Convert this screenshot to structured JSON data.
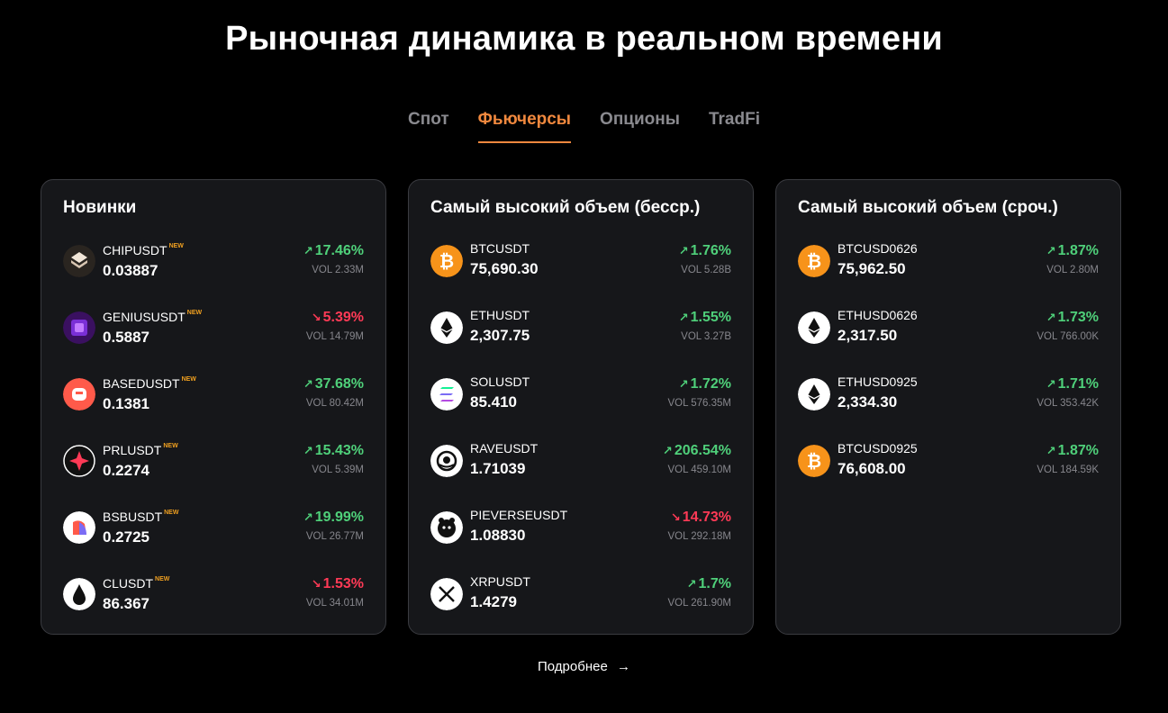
{
  "title": "Рыночная динамика в реальном времени",
  "tabs": [
    {
      "label": "Спот",
      "active": false
    },
    {
      "label": "Фьючерсы",
      "active": true
    },
    {
      "label": "Опционы",
      "active": false
    },
    {
      "label": "TradFi",
      "active": false
    }
  ],
  "colors": {
    "accent": "#f0883e",
    "up": "#4fd07a",
    "down": "#ff3a56",
    "new_badge": "#f0a020"
  },
  "cards": [
    {
      "title": "Новинки",
      "rows": [
        {
          "symbol": "CHIPUSDT",
          "badge": "NEW",
          "price": "0.03887",
          "change": "17.46%",
          "direction": "up",
          "vol": "VOL 2.33M",
          "icon": "chip-icon",
          "icon_bg": "#2a2520"
        },
        {
          "symbol": "GENIUSUSDT",
          "badge": "NEW",
          "price": "0.5887",
          "change": "5.39%",
          "direction": "down",
          "vol": "VOL 14.79M",
          "icon": "genius-icon",
          "icon_bg": "#3a1060"
        },
        {
          "symbol": "BASEDUSDT",
          "badge": "NEW",
          "price": "0.1381",
          "change": "37.68%",
          "direction": "up",
          "vol": "VOL 80.42M",
          "icon": "based-icon",
          "icon_bg": "#ff5a4a"
        },
        {
          "symbol": "PRLUSDT",
          "badge": "NEW",
          "price": "0.2274",
          "change": "15.43%",
          "direction": "up",
          "vol": "VOL 5.39M",
          "icon": "prl-icon",
          "icon_bg": "#111111"
        },
        {
          "symbol": "BSBUSDT",
          "badge": "NEW",
          "price": "0.2725",
          "change": "19.99%",
          "direction": "up",
          "vol": "VOL 26.77M",
          "icon": "bsb-icon",
          "icon_bg": "#ffffff"
        },
        {
          "symbol": "CLUSDT",
          "badge": "NEW",
          "price": "86.367",
          "change": "1.53%",
          "direction": "down",
          "vol": "VOL 34.01M",
          "icon": "oil-drop-icon",
          "icon_bg": "#ffffff"
        }
      ]
    },
    {
      "title": "Самый высокий объем (бесср.)",
      "rows": [
        {
          "symbol": "BTCUSDT",
          "badge": "",
          "price": "75,690.30",
          "change": "1.76%",
          "direction": "up",
          "vol": "VOL 5.28B",
          "icon": "bitcoin-icon",
          "icon_bg": "#f7931a"
        },
        {
          "symbol": "ETHUSDT",
          "badge": "",
          "price": "2,307.75",
          "change": "1.55%",
          "direction": "up",
          "vol": "VOL 3.27B",
          "icon": "ethereum-icon",
          "icon_bg": "#ffffff"
        },
        {
          "symbol": "SOLUSDT",
          "badge": "",
          "price": "85.410",
          "change": "1.72%",
          "direction": "up",
          "vol": "VOL 576.35M",
          "icon": "solana-icon",
          "icon_bg": "#ffffff"
        },
        {
          "symbol": "RAVEUSDT",
          "badge": "",
          "price": "1.71039",
          "change": "206.54%",
          "direction": "up",
          "vol": "VOL 459.10M",
          "icon": "rave-icon",
          "icon_bg": "#ffffff"
        },
        {
          "symbol": "PIEVERSEUSDT",
          "badge": "",
          "price": "1.08830",
          "change": "14.73%",
          "direction": "down",
          "vol": "VOL 292.18M",
          "icon": "pieverse-icon",
          "icon_bg": "#ffffff"
        },
        {
          "symbol": "XRPUSDT",
          "badge": "",
          "price": "1.4279",
          "change": "1.7%",
          "direction": "up",
          "vol": "VOL 261.90M",
          "icon": "xrp-icon",
          "icon_bg": "#ffffff"
        }
      ]
    },
    {
      "title": "Самый высокий объем (сроч.)",
      "rows": [
        {
          "symbol": "BTCUSD0626",
          "badge": "",
          "price": "75,962.50",
          "change": "1.87%",
          "direction": "up",
          "vol": "VOL 2.80M",
          "icon": "bitcoin-icon",
          "icon_bg": "#f7931a"
        },
        {
          "symbol": "ETHUSD0626",
          "badge": "",
          "price": "2,317.50",
          "change": "1.73%",
          "direction": "up",
          "vol": "VOL 766.00K",
          "icon": "ethereum-icon",
          "icon_bg": "#ffffff"
        },
        {
          "symbol": "ETHUSD0925",
          "badge": "",
          "price": "2,334.30",
          "change": "1.71%",
          "direction": "up",
          "vol": "VOL 353.42K",
          "icon": "ethereum-icon",
          "icon_bg": "#ffffff"
        },
        {
          "symbol": "BTCUSD0925",
          "badge": "",
          "price": "76,608.00",
          "change": "1.87%",
          "direction": "up",
          "vol": "VOL 184.59K",
          "icon": "bitcoin-icon",
          "icon_bg": "#f7931a"
        }
      ]
    }
  ],
  "more_link": {
    "label": "Подробнее",
    "arrow": "→"
  }
}
